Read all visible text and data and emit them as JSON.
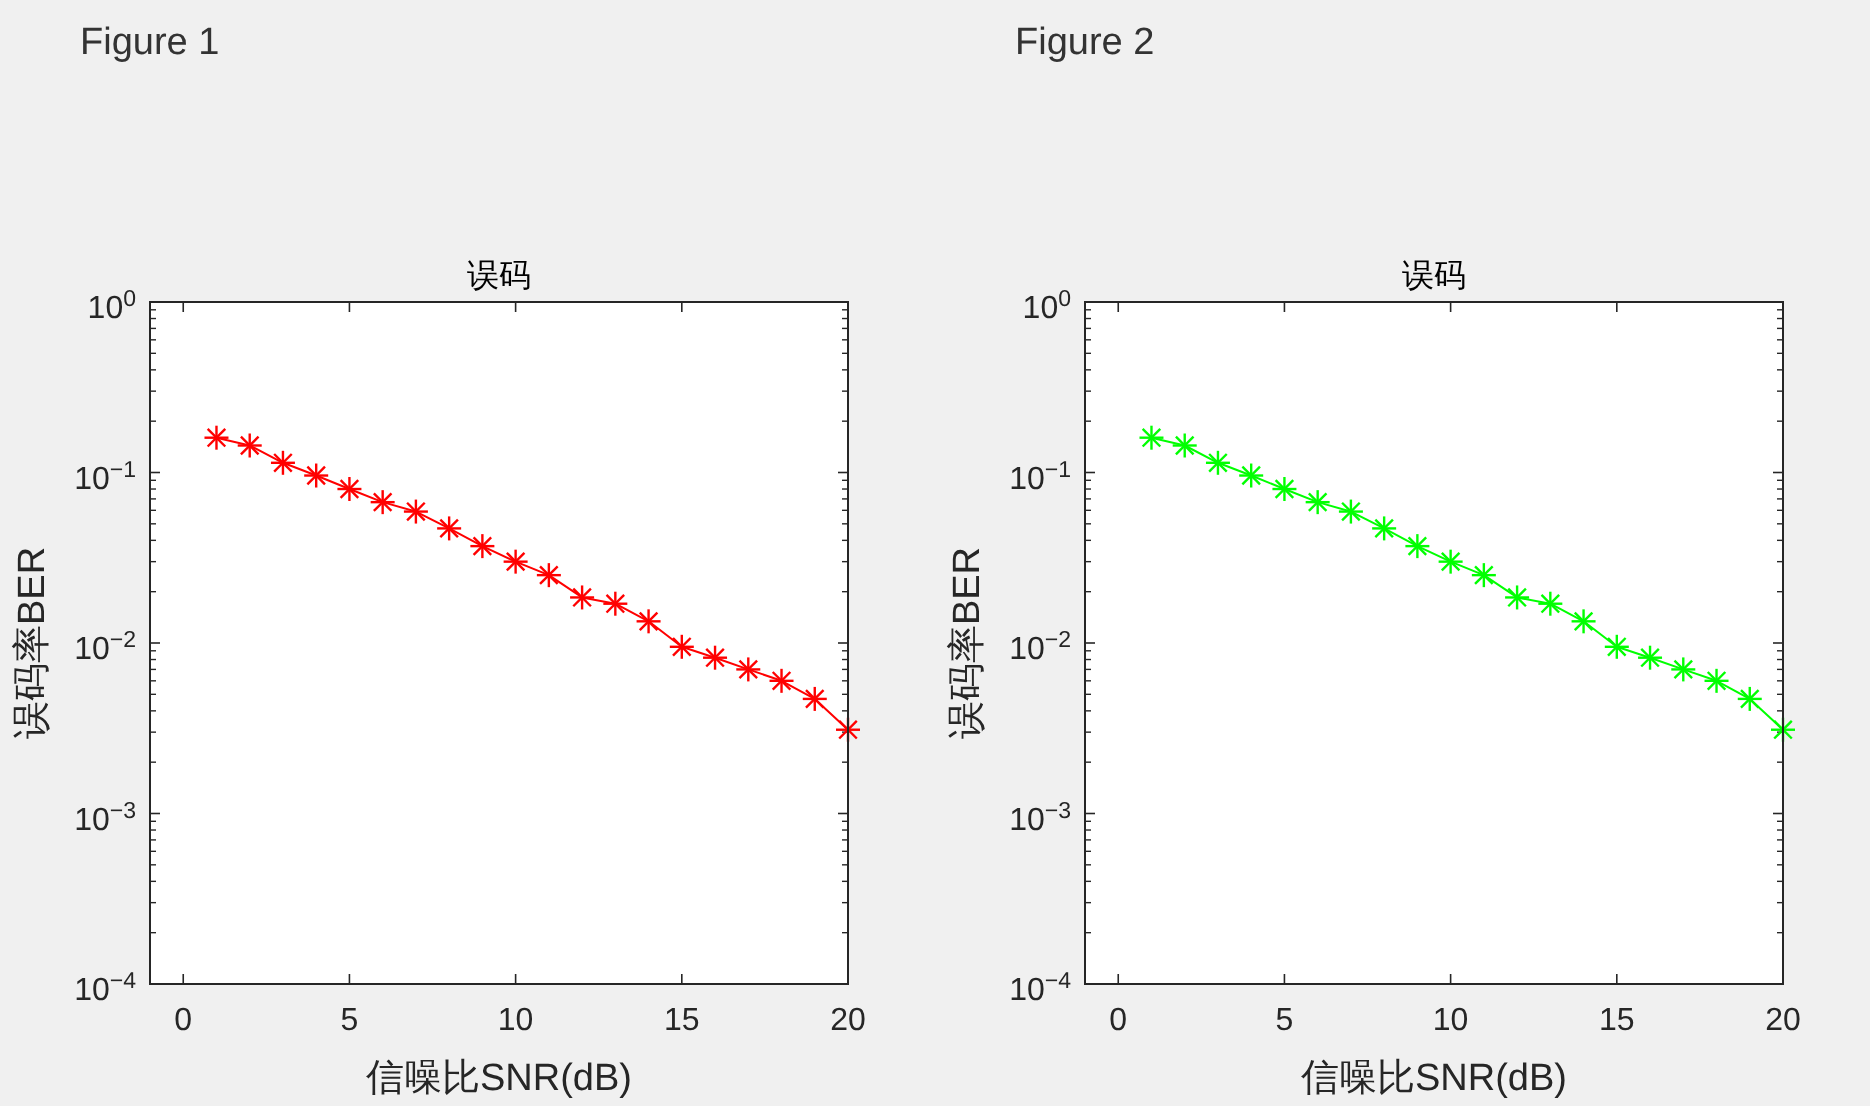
{
  "chart_data": [
    {
      "type": "line",
      "title": "误码",
      "annotations": [
        "Figure 1"
      ],
      "xlabel": "信噪比SNR(dB)",
      "ylabel": "误码率BER",
      "x": [
        1,
        2,
        3,
        4,
        5,
        6,
        7,
        8,
        9,
        10,
        11,
        12,
        13,
        14,
        15,
        16,
        17,
        18,
        19,
        20
      ],
      "series": [
        {
          "color": "#ff0000",
          "values": [
            0.16,
            0.144,
            0.114,
            0.096,
            0.08,
            0.067,
            0.059,
            0.047,
            0.037,
            0.03,
            0.025,
            0.0185,
            0.017,
            0.0134,
            0.0095,
            0.0082,
            0.007,
            0.006,
            0.0047,
            0.0031
          ]
        }
      ],
      "xlim": [
        -1,
        20
      ],
      "xticks": [
        0,
        5,
        10,
        15,
        20
      ],
      "ylim": [
        0.0001,
        1
      ],
      "yticks": [
        {
          "value": 0.0001,
          "label": "10$^{−4}$"
        },
        {
          "value": 0.001,
          "label": "10$^{−3}$"
        },
        {
          "value": 0.01,
          "label": "10$^{−2}$"
        },
        {
          "value": 0.1,
          "label": "10$^{−1}$"
        },
        {
          "value": 1,
          "label": "10$^{0}$"
        }
      ],
      "log": "y",
      "marker": "cross",
      "line_style": "solid"
    },
    {
      "type": "line",
      "title": "误码",
      "annotations": [
        "Figure 2"
      ],
      "xlabel": "信噪比SNR(dB)",
      "ylabel": "误码率BER",
      "x": [
        1,
        2,
        3,
        4,
        5,
        6,
        7,
        8,
        9,
        10,
        11,
        12,
        13,
        14,
        15,
        16,
        17,
        18,
        19,
        20
      ],
      "series": [
        {
          "color": "#00ff00",
          "values": [
            0.16,
            0.144,
            0.114,
            0.096,
            0.08,
            0.067,
            0.059,
            0.047,
            0.037,
            0.03,
            0.025,
            0.0185,
            0.017,
            0.0134,
            0.0095,
            0.0082,
            0.007,
            0.006,
            0.0047,
            0.0031
          ]
        }
      ],
      "xlim": [
        -1,
        20
      ],
      "xticks": [
        0,
        5,
        10,
        15,
        20
      ],
      "ylim": [
        0.0001,
        1
      ],
      "yticks": [
        {
          "value": 0.0001,
          "label": "10$^{−4}$"
        },
        {
          "value": 0.001,
          "label": "10$^{−3}$"
        },
        {
          "value": 0.01,
          "label": "10$^{−2}$"
        },
        {
          "value": 0.1,
          "label": "10$^{−1}$"
        },
        {
          "value": 1,
          "label": "10$^{0}$"
        }
      ],
      "log": "y",
      "marker": "cross",
      "line_style": "solid"
    }
  ]
}
